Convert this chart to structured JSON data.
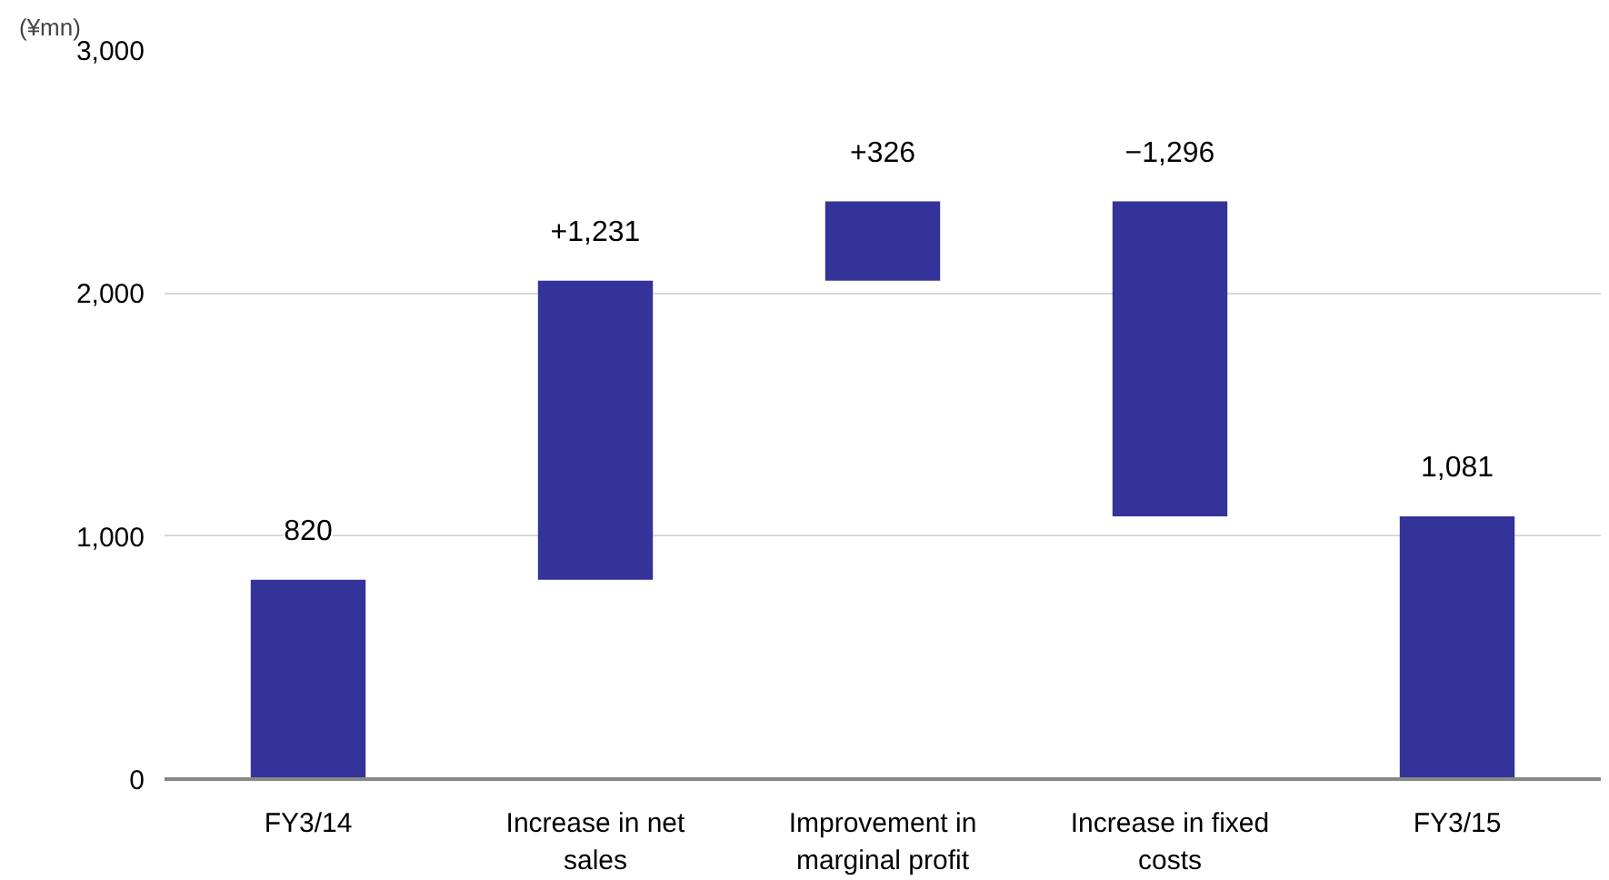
{
  "chart_data": {
    "type": "bar",
    "ylabel": "(¥mn)",
    "categories": [
      "FY3/14",
      "Increase in net sales",
      "Improvement in marginal profit",
      "Increase in fixed costs",
      "FY3/15"
    ],
    "values": [
      820,
      1231,
      326,
      -1296,
      1081
    ],
    "base": [
      0,
      820,
      2051,
      2377,
      0
    ],
    "value_labels": [
      "820",
      "+1,231",
      "+326",
      "−1,296",
      "1,081"
    ],
    "color": "#333399",
    "ylim": [
      0,
      3000
    ],
    "yticks": [
      0,
      {
        "value": 1000,
        "label": "1,000"
      },
      {
        "value": 2000,
        "label": "2,000"
      },
      {
        "value": 3000,
        "label": "3,000"
      }
    ],
    "grid": "y"
  }
}
